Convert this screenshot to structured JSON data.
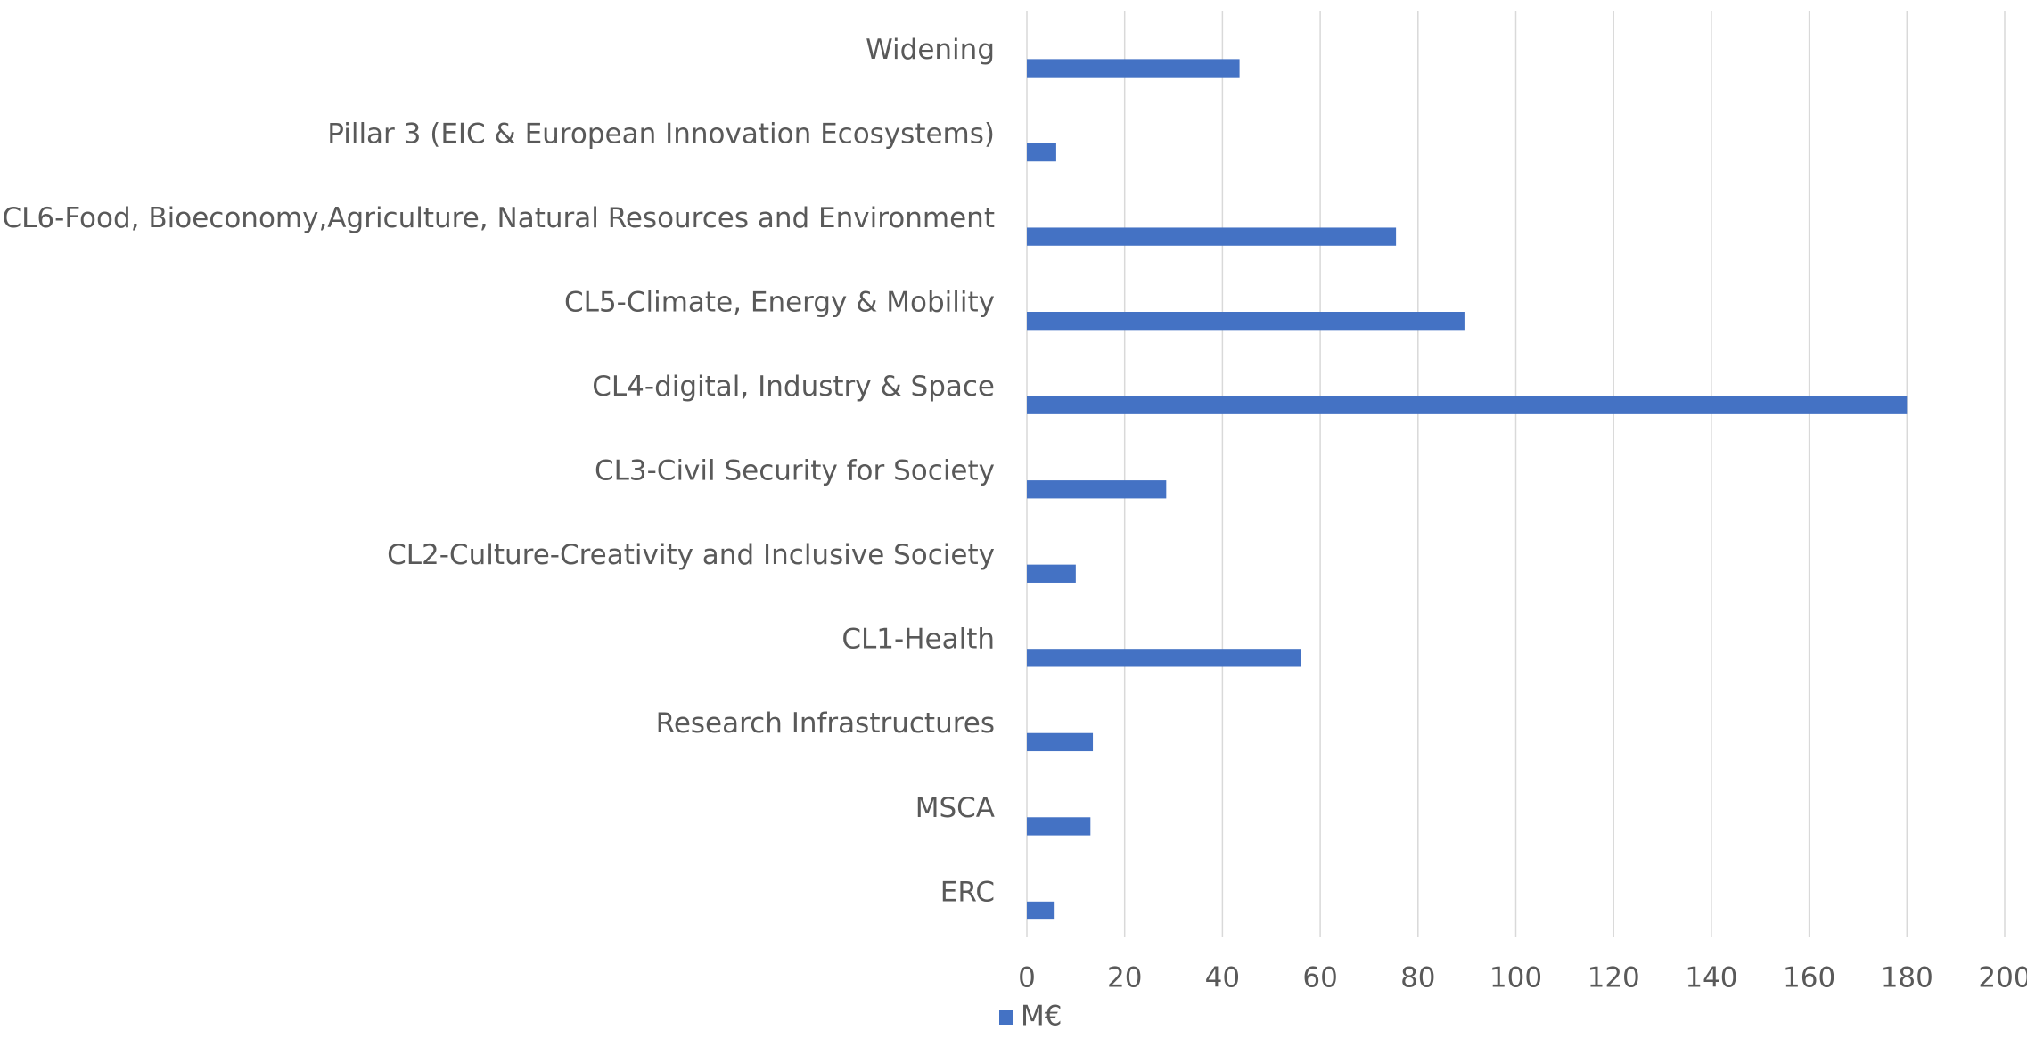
{
  "chart_data": {
    "type": "bar",
    "orientation": "horizontal",
    "categories": [
      "Widening",
      "Pillar 3 (EIC & European Innovation Ecosystems)",
      "CL6-Food, Bioeconomy,Agriculture, Natural Resources and Environment",
      "CL5-Climate, Energy & Mobility",
      "CL4-digital, Industry & Space",
      "CL3-Civil Security for Society",
      "CL2-Culture-Creativity and Inclusive Society",
      "CL1-Health",
      "Research Infrastructures",
      "MSCA",
      "ERC"
    ],
    "series": [
      {
        "name": "M€",
        "color": "#4472c4",
        "values": [
          43.5,
          6,
          75.5,
          89.5,
          180,
          28.5,
          10,
          56,
          13.5,
          13,
          5.5
        ]
      }
    ],
    "xlim": [
      0,
      200
    ],
    "xticks": [
      0,
      20,
      40,
      60,
      80,
      100,
      120,
      140,
      160,
      180,
      200
    ],
    "grid": true,
    "legend": "bottom"
  }
}
